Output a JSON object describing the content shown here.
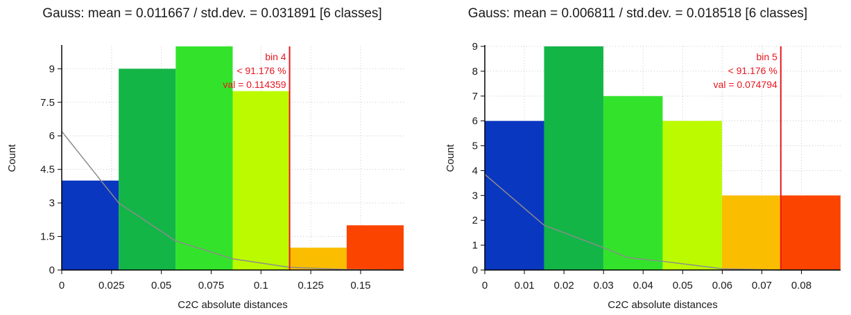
{
  "chart_data": [
    {
      "type": "bar",
      "title": "Gauss: mean = 0.011667 / std.dev. = 0.031891 [6 classes]",
      "xlabel": "C2C absolute distances",
      "ylabel": "Count",
      "xlim": [
        0,
        0.1716
      ],
      "ylim": [
        0,
        10
      ],
      "xticks": [
        "0",
        "0.025",
        "0.05",
        "0.075",
        "0.1",
        "0.125",
        "0.15"
      ],
      "yticks": [
        "0",
        "1.5",
        "3",
        "4.5",
        "6",
        "7.5",
        "9"
      ],
      "bin_width": 0.0286,
      "values": [
        4,
        9,
        10,
        8,
        1,
        2
      ],
      "colors": [
        "#0a37c0",
        "#13b547",
        "#33e32b",
        "#bcfa00",
        "#fbbd00",
        "#fb4400"
      ],
      "gauss_curve": {
        "x": [
          0,
          0.0286,
          0.0572,
          0.0858,
          0.1144,
          0.143,
          0.1716
        ],
        "y": [
          6.2,
          3.0,
          1.3,
          0.5,
          0.12,
          0.02,
          0.0
        ]
      },
      "threshold": {
        "value": 0.114359,
        "labels": [
          "bin 4",
          "< 91.176 %",
          "val = 0.114359"
        ]
      }
    },
    {
      "type": "bar",
      "title": "Gauss: mean = 0.006811 / std.dev. = 0.018518 [6 classes]",
      "xlabel": "C2C absolute distances",
      "ylabel": "Count",
      "xlim": [
        0,
        0.0899
      ],
      "ylim": [
        0,
        9
      ],
      "xticks": [
        "0",
        "0.01",
        "0.02",
        "0.03",
        "0.04",
        "0.05",
        "0.06",
        "0.07",
        "0.08"
      ],
      "yticks": [
        "0",
        "1",
        "2",
        "3",
        "4",
        "5",
        "6",
        "7",
        "8",
        "9"
      ],
      "bin_width": 0.01498,
      "values": [
        6,
        9,
        7,
        6,
        3,
        3
      ],
      "colors": [
        "#0a37c0",
        "#13b547",
        "#33e32b",
        "#bcfa00",
        "#fbbd00",
        "#fb4400"
      ],
      "gauss_curve": {
        "x": [
          0,
          0.015,
          0.03,
          0.036,
          0.045,
          0.06,
          0.075,
          0.0899
        ],
        "y": [
          3.85,
          1.8,
          0.9,
          0.5,
          0.35,
          0.05,
          0.0,
          0.0
        ]
      },
      "threshold": {
        "value": 0.074794,
        "labels": [
          "bin 5",
          "< 91.176 %",
          "val = 0.074794"
        ]
      }
    }
  ]
}
